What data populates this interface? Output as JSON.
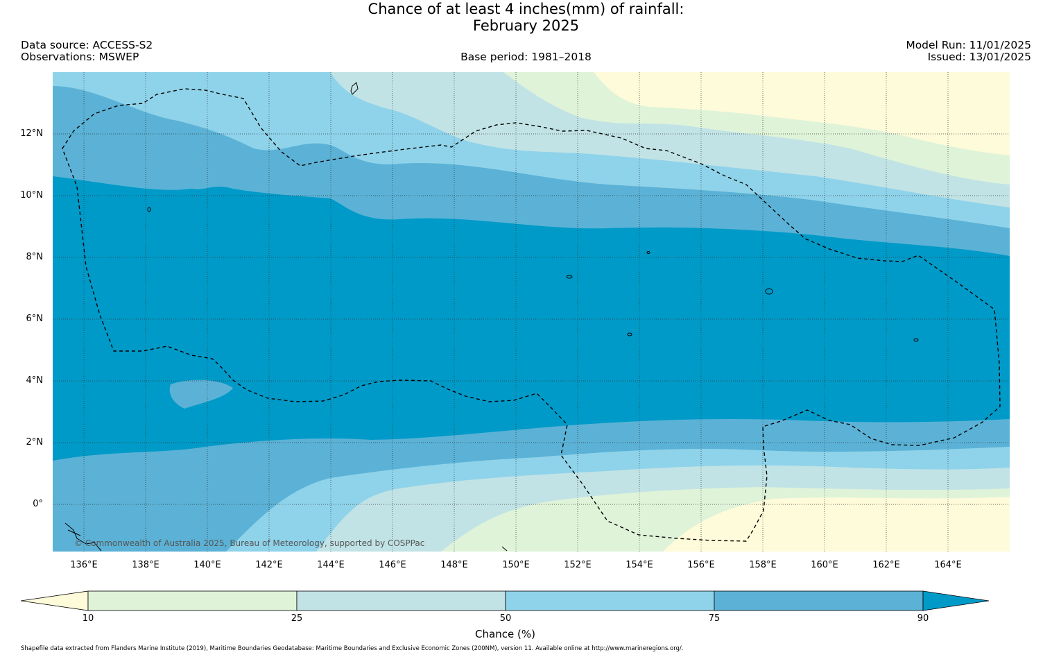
{
  "header": {
    "title_line1": "Chance of at least 4 inches(mm) of rainfall:",
    "title_line2": "February 2025",
    "data_source": "Data source: ACCESS-S2",
    "observations": "Observations: MSWEP",
    "base_period": "Base period: 1981–2018",
    "model_run": "Model Run: 11/01/2025",
    "issued": "Issued: 13/01/2025"
  },
  "map": {
    "lat_labels": [
      "12°N",
      "10°N",
      "8°N",
      "6°N",
      "4°N",
      "2°N",
      "0°"
    ],
    "lon_labels": [
      "136°E",
      "138°E",
      "140°E",
      "142°E",
      "144°E",
      "146°E",
      "148°E",
      "150°E",
      "152°E",
      "154°E",
      "156°E",
      "158°E",
      "160°E",
      "162°E",
      "164°E"
    ],
    "copyright": "© Commonwealth of Australia 2025, Bureau of Meteorology, supported by COSPPac",
    "colors": {
      "below_10": "#fdfbd9",
      "c10_25": "#dff3d9",
      "c25_50": "#c2e3e5",
      "c50_75": "#8fd3ea",
      "c75_90": "#5bb2d6",
      "above_90": "#009ac8"
    }
  },
  "colorbar": {
    "ticks": [
      "10",
      "25",
      "50",
      "75",
      "90"
    ],
    "label": "Chance (%)"
  },
  "footer": {
    "text": "Shapefile data extracted from Flanders Marine Institute (2019), Maritime Boundaries Geodatabase: Maritime Boundaries and Exclusive Economic Zones (200NM), version 11. Available online at http://www.marineregions.org/."
  }
}
